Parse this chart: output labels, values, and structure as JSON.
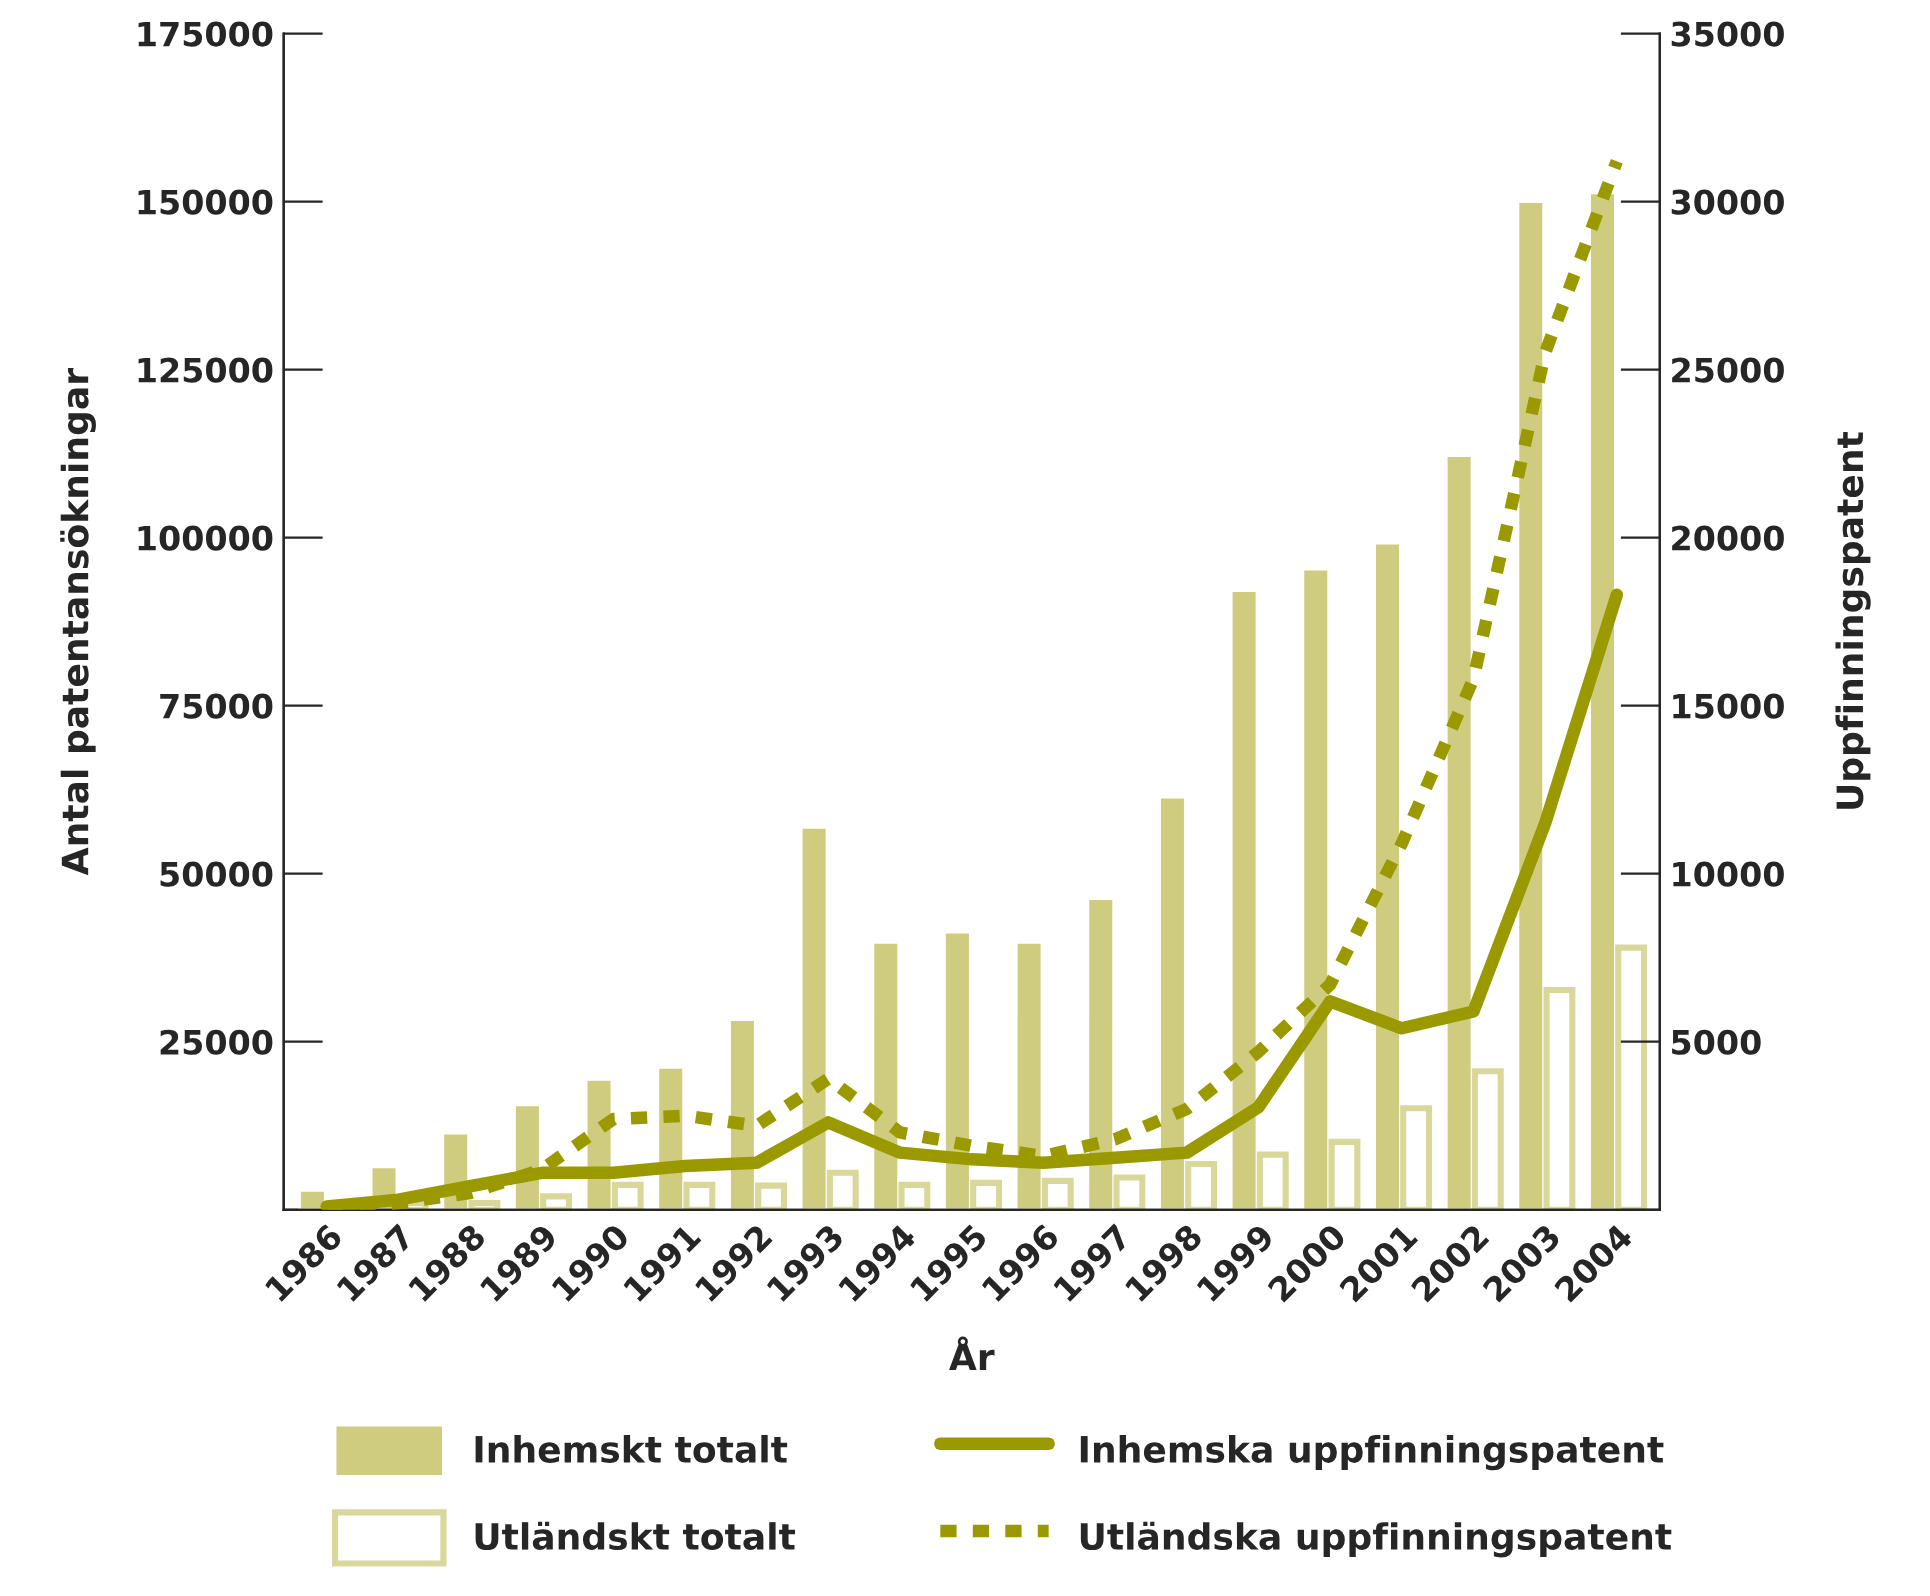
{
  "chart_data": {
    "type": "bar",
    "xlabel": "År",
    "ylabel": "Antal patentansökningar",
    "y2label": "Uppfinningspatent",
    "categories": [
      "1986",
      "1987",
      "1988",
      "1989",
      "1990",
      "1991",
      "1992",
      "1993",
      "1994",
      "1995",
      "1996",
      "1997",
      "1998",
      "1999",
      "2000",
      "2001",
      "2002",
      "2003",
      "2004"
    ],
    "series": [
      {
        "name": "Inhemskt totalt",
        "color": "#cfcc80",
        "values": [
          2900,
          6400,
          11400,
          15600,
          19400,
          21200,
          28300,
          56900,
          39800,
          41300,
          39800,
          46300,
          61400,
          92100,
          95300,
          99200,
          112200,
          150000,
          151300
        ]
      },
      {
        "name": "Utländskt totalt",
        "color": "#d9d79a",
        "values": [
          300,
          1000,
          1000,
          2000,
          3700,
          3700,
          3600,
          5500,
          3700,
          4000,
          4300,
          4800,
          6800,
          8200,
          10100,
          15100,
          20600,
          32700,
          39000
        ]
      },
      {
        "name": "Inhemska uppfinningspatent",
        "type": "line",
        "axis": "y2",
        "line_style": "solid",
        "color": "#9a9a00",
        "values": [
          100,
          300,
          700,
          1100,
          1100,
          1300,
          1400,
          2600,
          1700,
          1500,
          1400,
          1550,
          1700,
          3050,
          6200,
          5400,
          5900,
          11500,
          18300
        ]
      },
      {
        "name": "Utländska uppfinningspatent",
        "type": "line",
        "axis": "y2",
        "line_style": "dotted",
        "color": "#9a9a00",
        "values": [
          0,
          200,
          500,
          1200,
          2700,
          2800,
          2500,
          3900,
          2300,
          1900,
          1600,
          2100,
          3000,
          4700,
          6700,
          10900,
          15800,
          25500,
          31200
        ]
      }
    ],
    "ylim": [
      0,
      175000
    ],
    "yticks": [
      {
        "value": 0,
        "label": null
      },
      25000,
      50000,
      75000,
      100000,
      125000,
      150000,
      175000
    ],
    "y2lim": [
      0,
      35000
    ],
    "y2ticks": [
      {
        "value": 0,
        "label": null
      },
      5000,
      10000,
      15000,
      20000,
      25000,
      30000,
      35000
    ],
    "grid": false,
    "legend": "bottom"
  }
}
